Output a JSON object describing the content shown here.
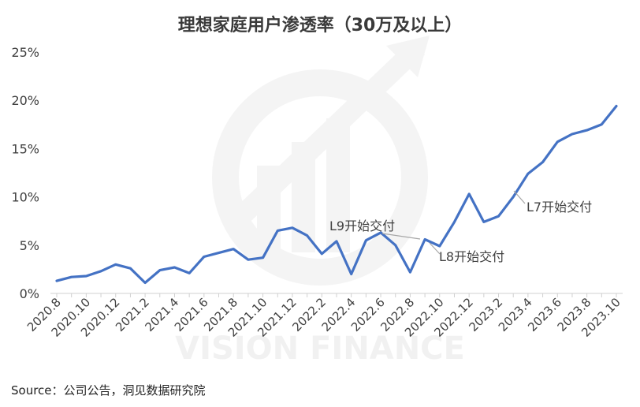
{
  "chart_data": {
    "type": "line",
    "title": "理想家庭用户渗透率（30万及以上）",
    "source": "Source：公司公告，洞见数据研究院",
    "y_ticks": [
      "0%",
      "5%",
      "10%",
      "15%",
      "20%",
      "25%"
    ],
    "ylim": [
      0,
      25
    ],
    "x": [
      "2020.8",
      "2020.9",
      "2020.10",
      "2020.11",
      "2020.12",
      "2021.1",
      "2021.2",
      "2021.3",
      "2021.4",
      "2021.5",
      "2021.6",
      "2021.7",
      "2021.8",
      "2021.9",
      "2021.10",
      "2021.11",
      "2021.12",
      "2022.1",
      "2022.2",
      "2022.3",
      "2022.4",
      "2022.5",
      "2022.6",
      "2022.7",
      "2022.8",
      "2022.9",
      "2022.10",
      "2022.11",
      "2022.12",
      "2023.1",
      "2023.2",
      "2023.3",
      "2023.4",
      "2023.5",
      "2023.6",
      "2023.7",
      "2023.8",
      "2023.9",
      "2023.10"
    ],
    "x_tick_labels": [
      "2020.8",
      "2020.10",
      "2020.12",
      "2021.2",
      "2021.4",
      "2021.6",
      "2021.8",
      "2021.10",
      "2021.12",
      "2022.2",
      "2022.4",
      "2022.6",
      "2022.8",
      "2022.10",
      "2022.12",
      "2023.2",
      "2023.4",
      "2023.6",
      "2023.8",
      "2023.10"
    ],
    "series": [
      {
        "values": [
          1.3,
          1.7,
          1.8,
          2.3,
          3.0,
          2.6,
          1.1,
          2.4,
          2.7,
          2.1,
          3.8,
          4.2,
          4.6,
          3.5,
          3.7,
          6.5,
          6.8,
          6.0,
          4.1,
          5.4,
          2.0,
          5.5,
          6.3,
          5.0,
          2.2,
          5.6,
          4.9,
          7.4,
          10.3,
          7.4,
          8.0,
          10.0,
          12.4,
          13.6,
          15.7,
          16.5,
          16.9,
          17.5,
          19.4
        ],
        "color": "#4472C4"
      }
    ],
    "annotations": [
      {
        "text": "L9开始交付",
        "x": "2022.6"
      },
      {
        "text": "L8开始交付",
        "x": "2022.10"
      },
      {
        "text": "L7开始交付",
        "x": "2023.3"
      }
    ],
    "grid": false,
    "watermark": "VISION FINANCE"
  }
}
